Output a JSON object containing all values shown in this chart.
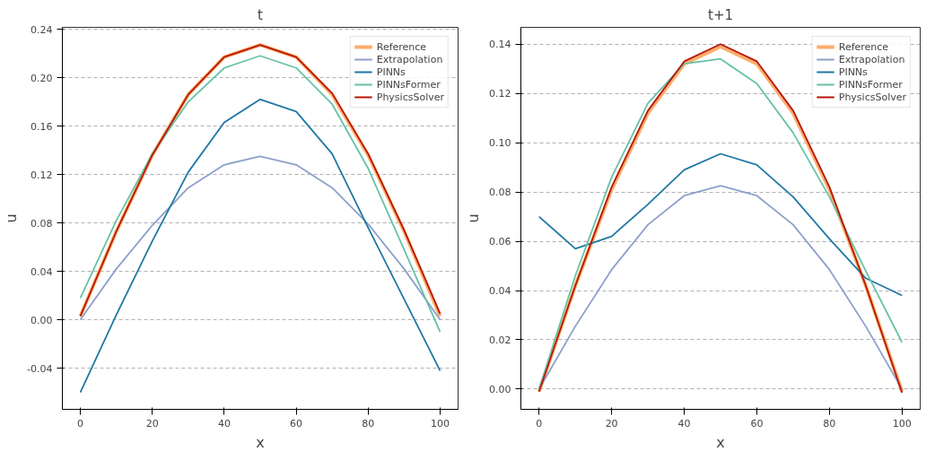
{
  "chart_data": [
    {
      "type": "line",
      "title": "t",
      "xlabel": "x",
      "ylabel": "u",
      "x": [
        0,
        10,
        20,
        30,
        40,
        50,
        60,
        70,
        80,
        90,
        100
      ],
      "xlim": [
        -5,
        105
      ],
      "xticks": [
        0,
        20,
        40,
        60,
        80,
        100
      ],
      "ylim": [
        -0.074,
        0.2415
      ],
      "yticks": [
        {
          "value": -0.04,
          "label": "-0.04"
        },
        {
          "value": 0,
          "label": "0.00"
        },
        {
          "value": 0.04,
          "label": "0.04"
        },
        {
          "value": 0.08,
          "label": "0.08"
        },
        {
          "value": 0.12,
          "label": "0.12"
        },
        {
          "value": 0.16,
          "label": "0.16"
        },
        {
          "value": 0.2,
          "label": "0.20"
        },
        {
          "value": 0.24,
          "label": "0.24"
        }
      ],
      "grid": "y",
      "legend": "top right",
      "series": [
        {
          "name": "Reference",
          "color": "#fdae6b",
          "values": [
            0.003,
            0.073,
            0.136,
            0.186,
            0.217,
            0.227,
            0.217,
            0.186,
            0.136,
            0.073,
            0.003
          ]
        },
        {
          "name": "Extrapolation",
          "color": "#8da0cb",
          "values": [
            0,
            0.042,
            0.078,
            0.109,
            0.128,
            0.135,
            0.128,
            0.109,
            0.079,
            0.042,
            0
          ]
        },
        {
          "name": "PINNs",
          "color": "#1f78a4",
          "values": [
            -0.06,
            0.004,
            0.065,
            0.122,
            0.163,
            0.182,
            0.172,
            0.137,
            0.076,
            0.017,
            -0.042
          ]
        },
        {
          "name": "PINNsFormer",
          "color": "#66c2a5",
          "values": [
            0.018,
            0.082,
            0.137,
            0.18,
            0.208,
            0.218,
            0.208,
            0.178,
            0.125,
            0.058,
            -0.01
          ]
        },
        {
          "name": "PhysicsSolver",
          "color": "#b8160a",
          "values": [
            0.003,
            0.073,
            0.136,
            0.186,
            0.217,
            0.227,
            0.217,
            0.187,
            0.137,
            0.074,
            0.005
          ]
        }
      ]
    },
    {
      "type": "line",
      "title": "t+1",
      "xlabel": "x",
      "ylabel": "u",
      "x": [
        0,
        10,
        20,
        30,
        40,
        50,
        60,
        70,
        80,
        90,
        100
      ],
      "xlim": [
        -5,
        105
      ],
      "xticks": [
        0,
        20,
        40,
        60,
        80,
        100
      ],
      "ylim": [
        -0.0082,
        0.1468
      ],
      "yticks": [
        {
          "value": 0,
          "label": "0.00"
        },
        {
          "value": 0.02,
          "label": "0.02"
        },
        {
          "value": 0.04,
          "label": "0.04"
        },
        {
          "value": 0.06,
          "label": "0.06"
        },
        {
          "value": 0.08,
          "label": "0.08"
        },
        {
          "value": 0.1,
          "label": "0.10"
        },
        {
          "value": 0.12,
          "label": "0.12"
        },
        {
          "value": 0.14,
          "label": "0.14"
        }
      ],
      "grid": "y",
      "legend": "top right",
      "series": [
        {
          "name": "Reference",
          "color": "#fdae6b",
          "values": [
            -0.001,
            0.042,
            0.081,
            0.112,
            0.132,
            0.139,
            0.132,
            0.112,
            0.081,
            0.042,
            -0.001
          ]
        },
        {
          "name": "Extrapolation",
          "color": "#8da0cb",
          "values": [
            0,
            0.0255,
            0.0485,
            0.0667,
            0.0785,
            0.0825,
            0.0785,
            0.0667,
            0.0485,
            0.0255,
            0
          ]
        },
        {
          "name": "PINNs",
          "color": "#1f78a4",
          "values": [
            0.07,
            0.057,
            0.062,
            0.075,
            0.089,
            0.0955,
            0.091,
            0.078,
            0.061,
            0.045,
            0.038
          ]
        },
        {
          "name": "PINNsFormer",
          "color": "#66c2a5",
          "values": [
            0,
            0.046,
            0.086,
            0.116,
            0.132,
            0.134,
            0.124,
            0.104,
            0.078,
            0.048,
            0.019
          ]
        },
        {
          "name": "PhysicsSolver",
          "color": "#b8160a",
          "values": [
            -0.001,
            0.042,
            0.082,
            0.113,
            0.133,
            0.14,
            0.133,
            0.113,
            0.082,
            0.042,
            -0.0015
          ]
        }
      ]
    }
  ]
}
